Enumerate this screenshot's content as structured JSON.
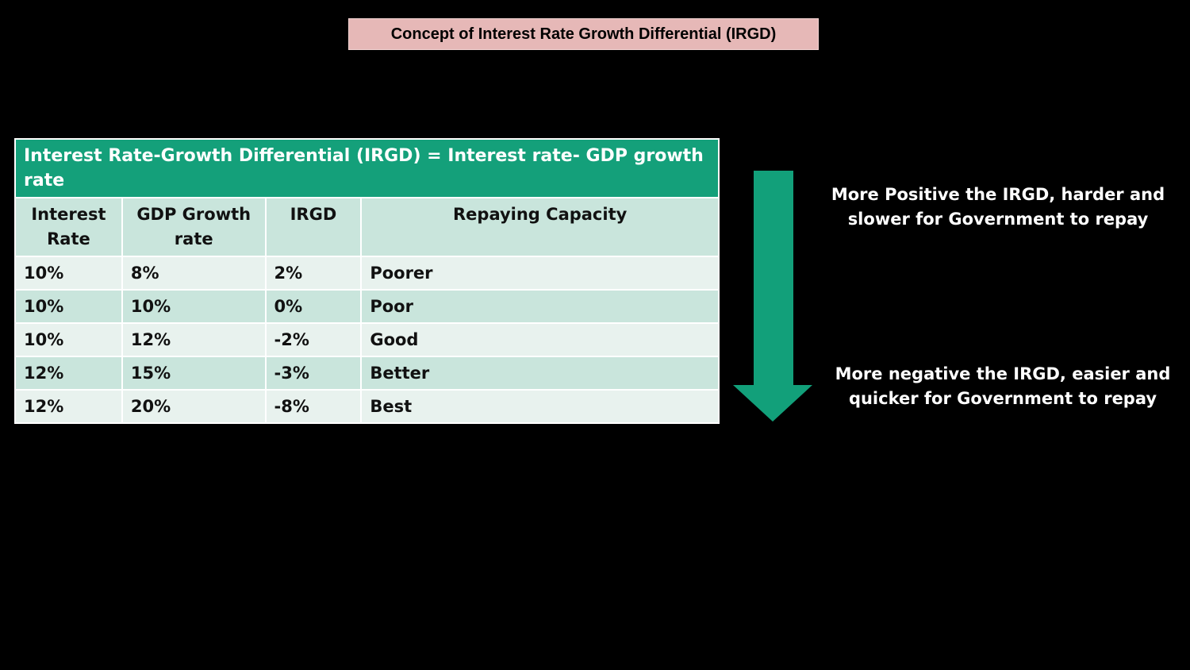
{
  "title": "Concept of Interest Rate Growth Differential (IRGD)",
  "table": {
    "formula": "Interest Rate-Growth Differential (IRGD) = Interest rate- GDP growth rate",
    "headers": [
      "Interest Rate",
      "GDP Growth rate",
      "IRGD",
      "Repaying Capacity"
    ],
    "rows": [
      [
        "10%",
        "8%",
        "2%",
        "Poorer"
      ],
      [
        "10%",
        "10%",
        "0%",
        "Poor"
      ],
      [
        "10%",
        "12%",
        "-2%",
        "Good"
      ],
      [
        "12%",
        "15%",
        "-3%",
        "Better"
      ],
      [
        "12%",
        "20%",
        "-8%",
        "Best"
      ]
    ]
  },
  "notes": {
    "top": "More Positive the IRGD, harder and slower for Government to repay",
    "bottom": "More negative the IRGD, easier and quicker for Government to repay"
  },
  "arrow": {
    "icon": "down-arrow-icon",
    "color": "#12a07a"
  },
  "colors": {
    "title_bg": "#e6b8b7",
    "header_green": "#14a07a",
    "row_light": "#e8f2ee",
    "row_mid": "#c9e5dc"
  }
}
